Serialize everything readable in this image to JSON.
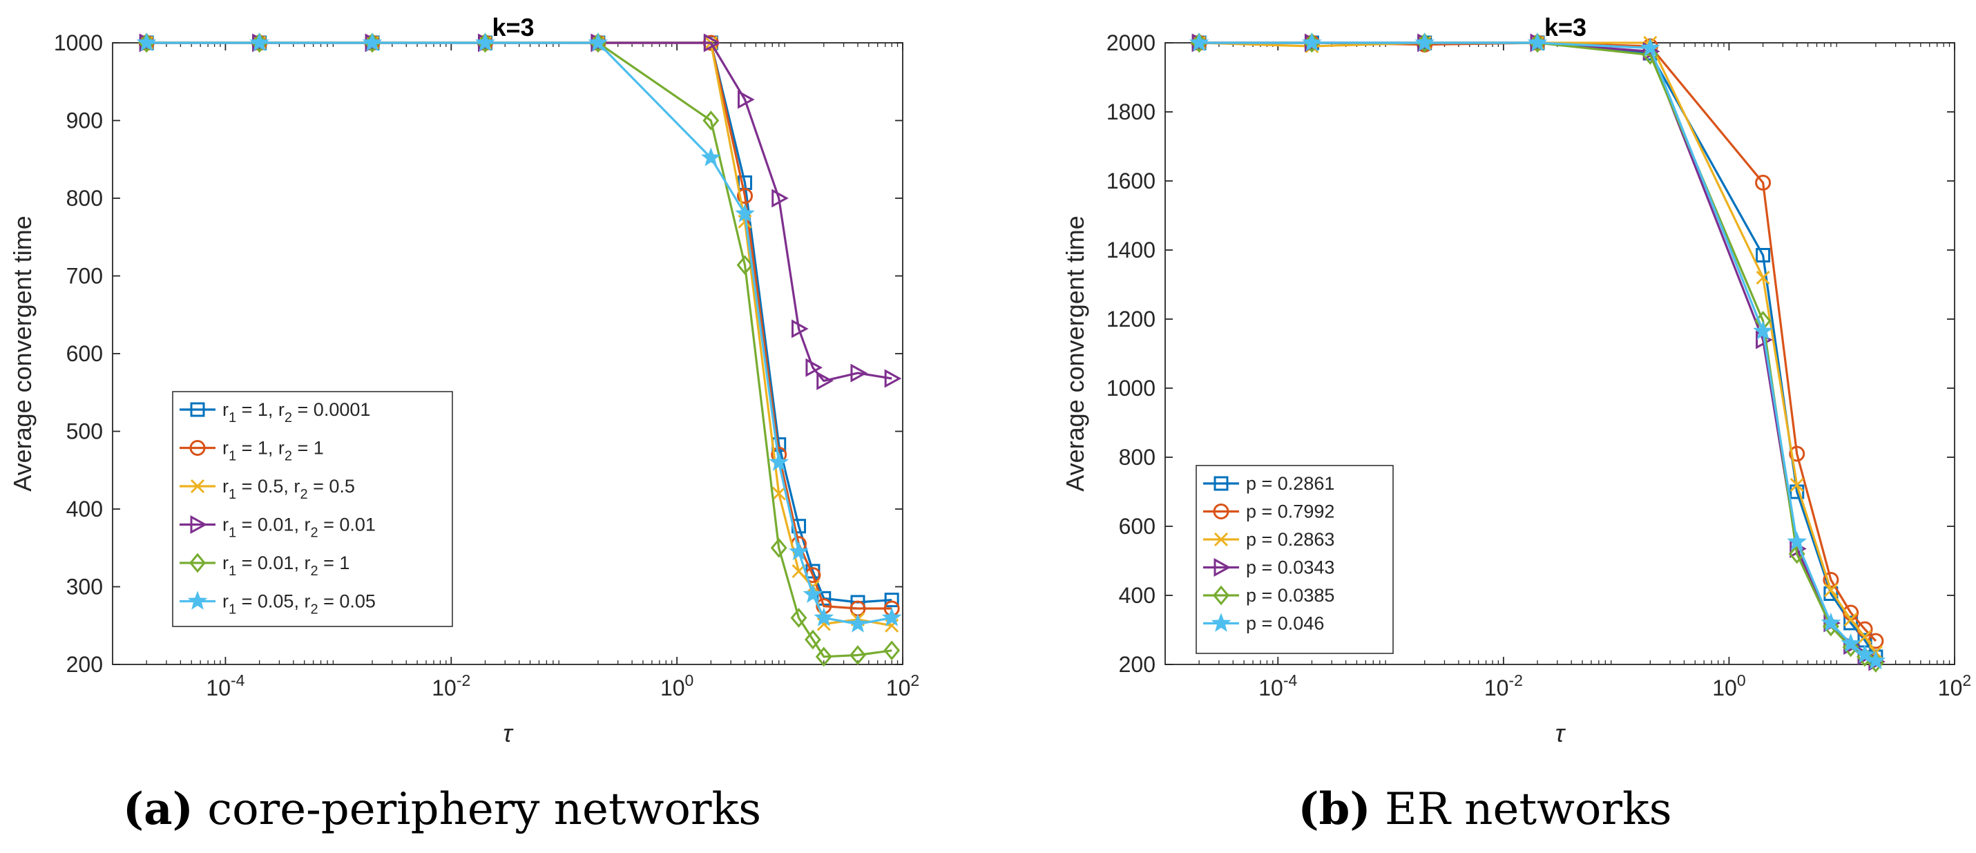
{
  "chart_data": [
    {
      "type": "line",
      "title": "k=3",
      "xlabel": "τ",
      "ylabel": "Average convergent time",
      "xscale": "log",
      "xlim": [
        1e-05,
        100
      ],
      "ylim": [
        200,
        1000
      ],
      "xticks": [
        {
          "value": 0.0001,
          "base": "10",
          "exp": "-4"
        },
        {
          "value": 0.01,
          "base": "10",
          "exp": "-2"
        },
        {
          "value": 1,
          "base": "10",
          "exp": "0"
        },
        {
          "value": 100,
          "base": "10",
          "exp": "2"
        }
      ],
      "yticks": [
        200,
        300,
        400,
        500,
        600,
        700,
        800,
        900,
        1000
      ],
      "legend_position": "lower-left",
      "caption_letter": "(a)",
      "caption_text": " core-periphery networks",
      "x": [
        2e-05,
        0.0002,
        0.002,
        0.02,
        0.2,
        2,
        4,
        8,
        12,
        16,
        20,
        40,
        80
      ],
      "series": [
        {
          "name": "r1 = 1, r2 = 0.0001",
          "label": {
            "p1": "r",
            "s1": "1",
            "mid": " = 1, r",
            "s2": "2",
            "end": " = 0.0001"
          },
          "color": "#0072BD",
          "marker": "square",
          "values": [
            1000,
            1000,
            1000,
            1000,
            1000,
            1000,
            820,
            483,
            378,
            320,
            285,
            280,
            283
          ]
        },
        {
          "name": "r1 = 1, r2 = 1",
          "label": {
            "p1": "r",
            "s1": "1",
            "mid": " = 1, r",
            "s2": "2",
            "end": " = 1"
          },
          "color": "#D95319",
          "marker": "circle",
          "values": [
            1000,
            1000,
            1000,
            1000,
            1000,
            1000,
            803,
            470,
            355,
            315,
            275,
            272,
            272
          ]
        },
        {
          "name": "r1 = 0.5, r2 = 0.5",
          "label": {
            "p1": "r",
            "s1": "1",
            "mid": " = 0.5, r",
            "s2": "2",
            "end": " = 0.5"
          },
          "color": "#EDB120",
          "marker": "x",
          "values": [
            1000,
            1000,
            1000,
            1000,
            1000,
            1000,
            770,
            420,
            320,
            300,
            252,
            258,
            250
          ]
        },
        {
          "name": "r1 = 0.01, r2 = 0.01",
          "label": {
            "p1": "r",
            "s1": "1",
            "mid": " = 0.01, r",
            "s2": "2",
            "end": " = 0.01"
          },
          "color": "#7E2F8E",
          "marker": "triangle-right",
          "values": [
            1000,
            1000,
            1000,
            1000,
            1000,
            1000,
            927,
            800,
            632,
            582,
            565,
            575,
            568
          ]
        },
        {
          "name": "r1 = 0.01, r2 = 1",
          "label": {
            "p1": "r",
            "s1": "1",
            "mid": " = 0.01, r",
            "s2": "2",
            "end": " = 1"
          },
          "color": "#77AC30",
          "marker": "diamond",
          "values": [
            1000,
            1000,
            1000,
            1000,
            1000,
            900,
            714,
            350,
            260,
            232,
            210,
            212,
            218
          ]
        },
        {
          "name": "r1 = 0.05, r2 = 0.05",
          "label": {
            "p1": "r",
            "s1": "1",
            "mid": " = 0.05, r",
            "s2": "2",
            "end": " = 0.05"
          },
          "color": "#4DBEEE",
          "marker": "star",
          "values": [
            1000,
            1000,
            1000,
            1000,
            1000,
            852,
            780,
            460,
            345,
            290,
            260,
            252,
            260
          ]
        }
      ]
    },
    {
      "type": "line",
      "title": "k=3",
      "xlabel": "τ",
      "ylabel": "Average convergent time",
      "xscale": "log",
      "xlim": [
        1e-05,
        100
      ],
      "ylim": [
        200,
        2000
      ],
      "xticks": [
        {
          "value": 0.0001,
          "base": "10",
          "exp": "-4"
        },
        {
          "value": 0.01,
          "base": "10",
          "exp": "-2"
        },
        {
          "value": 1,
          "base": "10",
          "exp": "0"
        },
        {
          "value": 100,
          "base": "10",
          "exp": "2"
        }
      ],
      "yticks": [
        200,
        400,
        600,
        800,
        1000,
        1200,
        1400,
        1600,
        1800,
        2000
      ],
      "legend_position": "lower-left",
      "caption_letter": "(b)",
      "caption_text": " ER networks",
      "x": [
        2e-05,
        0.0002,
        0.002,
        0.02,
        0.2,
        2,
        4,
        8,
        12,
        16,
        20
      ],
      "series": [
        {
          "name": "p = 0.2861",
          "label": {
            "p1": "p = 0.2861"
          },
          "color": "#0072BD",
          "marker": "square",
          "values": [
            2000,
            2000,
            2000,
            2000,
            1970,
            1385,
            700,
            405,
            320,
            270,
            222
          ]
        },
        {
          "name": "p = 0.7992",
          "label": {
            "p1": "p = 0.7992"
          },
          "color": "#D95319",
          "marker": "circle",
          "values": [
            2000,
            2000,
            1995,
            2000,
            1990,
            1595,
            810,
            445,
            350,
            302,
            268
          ]
        },
        {
          "name": "p = 0.2863",
          "label": {
            "p1": "p = 0.2863"
          },
          "color": "#EDB120",
          "marker": "x",
          "values": [
            2000,
            1990,
            2000,
            2000,
            2000,
            1320,
            720,
            415,
            330,
            280,
            235
          ]
        },
        {
          "name": "p = 0.0343",
          "label": {
            "p1": "p = 0.0343"
          },
          "color": "#7E2F8E",
          "marker": "triangle-right",
          "values": [
            2000,
            2000,
            2000,
            2000,
            1975,
            1140,
            535,
            320,
            255,
            225,
            208
          ]
        },
        {
          "name": "p = 0.0385",
          "label": {
            "p1": "p = 0.0385"
          },
          "color": "#77AC30",
          "marker": "diamond",
          "values": [
            2000,
            2000,
            2000,
            2000,
            1965,
            1195,
            520,
            310,
            250,
            222,
            205
          ]
        },
        {
          "name": "p = 0.046",
          "label": {
            "p1": "p = 0.046"
          },
          "color": "#4DBEEE",
          "marker": "star",
          "values": [
            2000,
            2000,
            2000,
            2000,
            1985,
            1165,
            555,
            320,
            260,
            228,
            210
          ]
        }
      ]
    }
  ]
}
